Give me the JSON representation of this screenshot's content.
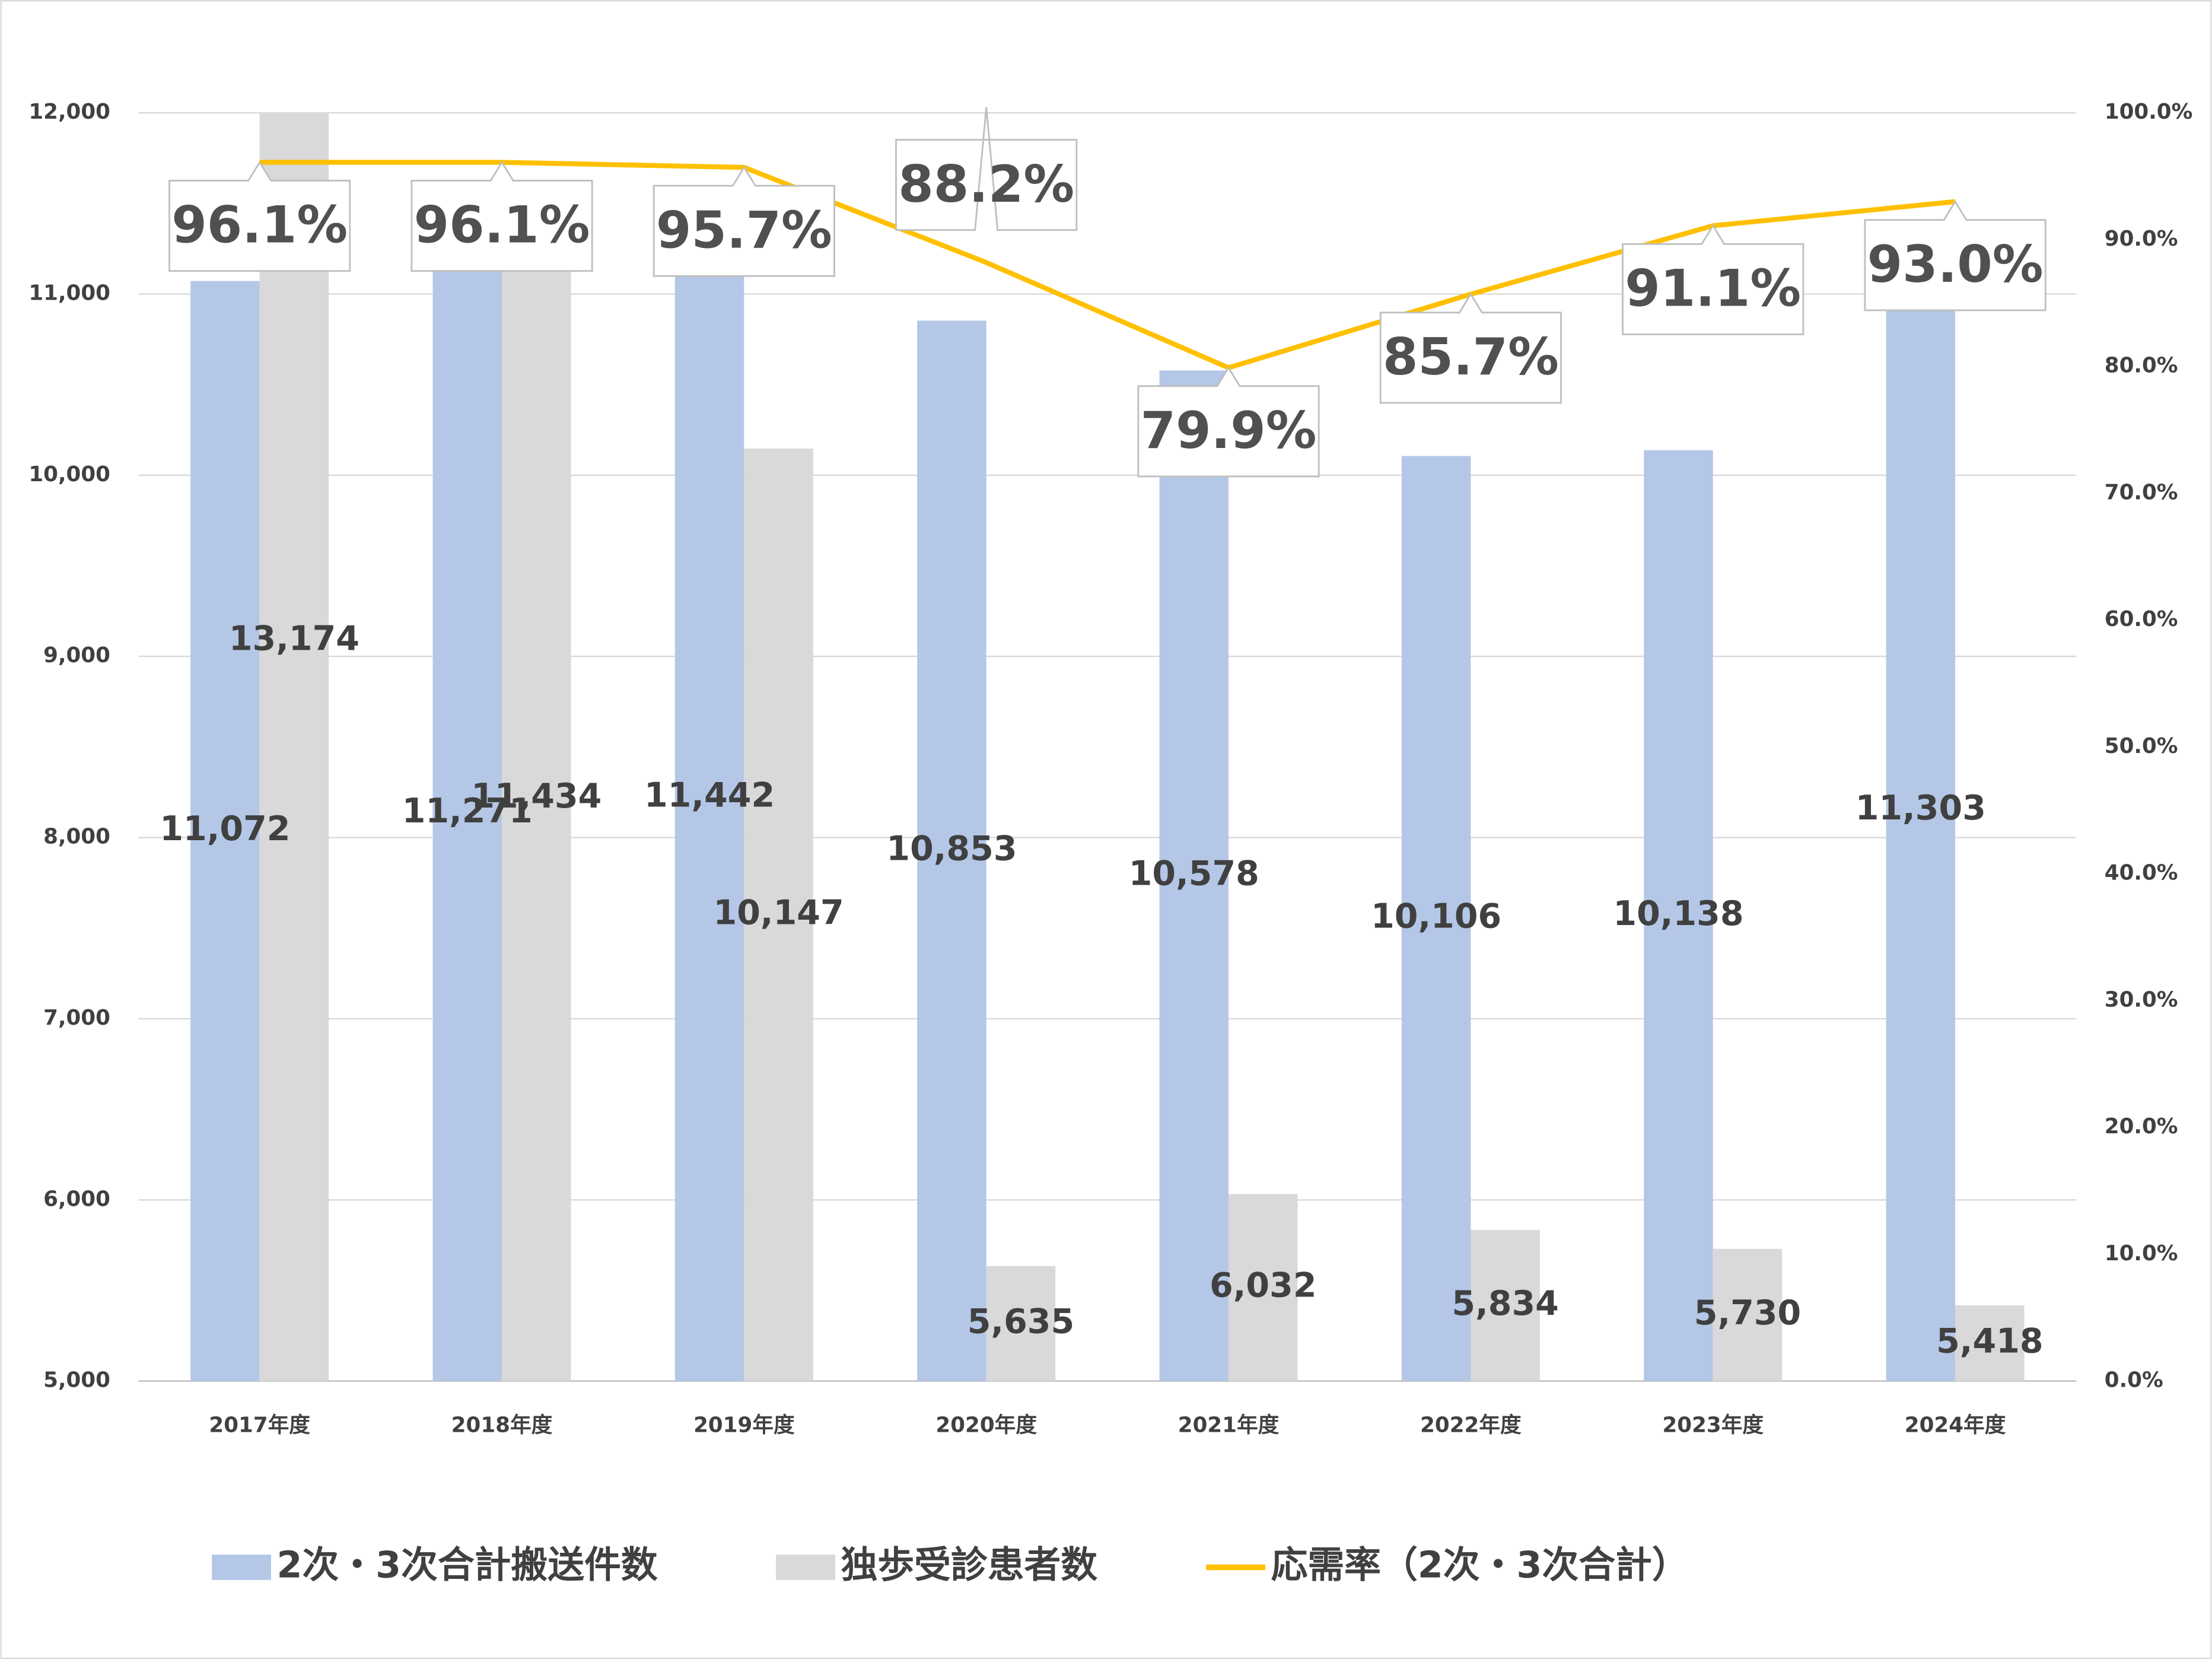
{
  "chart_data": {
    "type": "bar_line",
    "categories": [
      "2017年度",
      "2018年度",
      "2019年度",
      "2020年度",
      "2021年度",
      "2022年度",
      "2023年度",
      "2024年度"
    ],
    "series": [
      {
        "name": "2次・3次合計搬送件数",
        "color": "#b4c7e7",
        "type": "bar",
        "values": [
          11072,
          11271,
          11442,
          10853,
          10578,
          10106,
          10138,
          11303
        ],
        "value_labels": [
          "11,072",
          "11,271",
          "11,442",
          "10,853",
          "10,578",
          "10,106",
          "10,138",
          "11,303"
        ]
      },
      {
        "name": "独歩受診患者数",
        "color": "#d9d9d9",
        "type": "bar",
        "values": [
          13174,
          11434,
          10147,
          5635,
          6032,
          5834,
          5730,
          5418
        ],
        "value_labels": [
          "13,174",
          "11,434",
          "10,147",
          "5,635",
          "6,032",
          "5,834",
          "5,730",
          "5,418"
        ]
      },
      {
        "name": "応需率（2次・3次合計）",
        "color": "#ffc000",
        "type": "line",
        "axis": "y2",
        "values": [
          96.1,
          96.1,
          95.7,
          88.2,
          79.9,
          85.7,
          91.1,
          93.0
        ],
        "value_labels": [
          "96.1%",
          "96.1%",
          "95.7%",
          "88.2%",
          "79.9%",
          "85.7%",
          "91.1%",
          "93.0%"
        ]
      }
    ],
    "ylim": [
      5000,
      12000
    ],
    "yticks": [
      {
        "value": 5000,
        "label": "5,000"
      },
      {
        "value": 6000,
        "label": "6,000"
      },
      {
        "value": 7000,
        "label": "7,000"
      },
      {
        "value": 8000,
        "label": "8,000"
      },
      {
        "value": 9000,
        "label": "9,000"
      },
      {
        "value": 10000,
        "label": "10,000"
      },
      {
        "value": 11000,
        "label": "11,000"
      },
      {
        "value": 12000,
        "label": "12,000"
      }
    ],
    "y2lim": [
      0,
      100
    ],
    "y2ticks": [
      {
        "value": 0,
        "label": "0.0%"
      },
      {
        "value": 10,
        "label": "10.0%"
      },
      {
        "value": 20,
        "label": "20.0%"
      },
      {
        "value": 30,
        "label": "30.0%"
      },
      {
        "value": 40,
        "label": "40.0%"
      },
      {
        "value": 50,
        "label": "50.0%"
      },
      {
        "value": 60,
        "label": "60.0%"
      },
      {
        "value": 70,
        "label": "70.0%"
      },
      {
        "value": 80,
        "label": "80.0%"
      },
      {
        "value": 90,
        "label": "90.0%"
      },
      {
        "value": 100,
        "label": "100.0%"
      }
    ],
    "grid": true,
    "legend": "bottom"
  }
}
